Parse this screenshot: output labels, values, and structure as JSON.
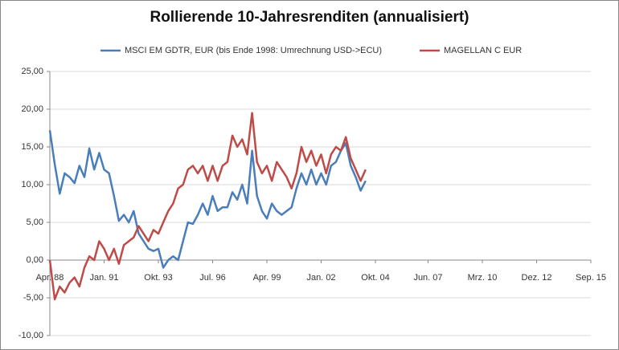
{
  "chart_data": {
    "type": "line",
    "title": "Rollierende 10-Jahresrenditen (annualisiert)",
    "x": [
      "1988-04",
      "1988-07",
      "1988-10",
      "1989-01",
      "1989-04",
      "1989-07",
      "1989-10",
      "1990-01",
      "1990-04",
      "1990-07",
      "1990-10",
      "1991-01",
      "1991-04",
      "1991-07",
      "1991-10",
      "1992-01",
      "1992-04",
      "1992-07",
      "1992-10",
      "1993-01",
      "1993-04",
      "1993-07",
      "1993-10",
      "1994-01",
      "1994-04",
      "1994-07",
      "1994-10",
      "1995-01",
      "1995-04",
      "1995-07",
      "1995-10",
      "1996-01",
      "1996-04",
      "1996-07",
      "1996-10",
      "1997-01",
      "1997-04",
      "1997-07",
      "1997-10",
      "1998-01",
      "1998-04",
      "1998-07",
      "1998-10",
      "1999-01",
      "1999-04",
      "1999-07",
      "1999-10",
      "2000-01",
      "2000-04",
      "2000-07",
      "2000-10",
      "2001-01",
      "2001-04",
      "2001-07",
      "2001-10",
      "2002-01",
      "2002-04",
      "2002-07",
      "2002-10",
      "2003-01",
      "2003-04",
      "2003-07",
      "2003-10",
      "2004-01",
      "2004-04"
    ],
    "series": [
      {
        "name": "MSCI EM GDTR,  EUR (bis Ende 1998: Umrechnung USD->ECU)",
        "color": "#4a7ebb",
        "values": [
          17.2,
          12.7,
          8.8,
          11.5,
          11.0,
          10.2,
          12.5,
          11.0,
          14.8,
          12.0,
          14.2,
          12.0,
          11.5,
          8.5,
          5.2,
          6.0,
          5.0,
          6.5,
          3.5,
          2.5,
          1.5,
          1.2,
          1.5,
          -1.0,
          0.0,
          0.5,
          0.0,
          2.5,
          5.0,
          4.8,
          6.0,
          7.5,
          6.0,
          8.5,
          6.5,
          7.0,
          7.0,
          9.0,
          8.0,
          10.0,
          7.5,
          14.5,
          8.5,
          6.5,
          5.5,
          7.5,
          6.5,
          6.0,
          6.5,
          7.0,
          9.5,
          11.5,
          10.0,
          12.0,
          10.0,
          11.5,
          10.0,
          12.5,
          13.0,
          14.5,
          15.5,
          12.5,
          11.0,
          9.2,
          10.5
        ]
      },
      {
        "name": "MAGELLAN C EUR",
        "color": "#be4b48",
        "values": [
          0.0,
          -5.2,
          -3.5,
          -4.3,
          -3.0,
          -2.3,
          -3.5,
          -1.0,
          0.5,
          0.0,
          2.5,
          1.5,
          0.0,
          1.5,
          -0.5,
          2.0,
          2.5,
          3.0,
          4.5,
          3.5,
          2.5,
          4.0,
          3.5,
          5.0,
          6.5,
          7.5,
          9.5,
          10.0,
          12.0,
          12.5,
          11.5,
          12.5,
          10.5,
          12.5,
          10.5,
          12.5,
          13.0,
          16.5,
          15.0,
          16.0,
          14.0,
          19.5,
          13.0,
          11.5,
          12.5,
          10.5,
          13.0,
          12.0,
          11.0,
          9.5,
          11.5,
          15.0,
          13.0,
          14.5,
          12.5,
          14.0,
          11.5,
          14.0,
          15.0,
          14.5,
          16.3,
          13.5,
          12.0,
          10.5,
          12.0
        ]
      }
    ],
    "xlim": [
      "1988-04",
      "2015-09"
    ],
    "xticks": [
      {
        "value": "1988-04",
        "label": "Apr. 88"
      },
      {
        "value": "1991-01",
        "label": "Jan. 91"
      },
      {
        "value": "1993-10",
        "label": "Okt. 93"
      },
      {
        "value": "1996-07",
        "label": "Jul. 96"
      },
      {
        "value": "1999-04",
        "label": "Apr. 99"
      },
      {
        "value": "2002-01",
        "label": "Jan. 02"
      },
      {
        "value": "2004-10",
        "label": "Okt. 04"
      },
      {
        "value": "2007-06",
        "label": "Jun. 07"
      },
      {
        "value": "2010-03",
        "label": "Mrz. 10"
      },
      {
        "value": "2012-12",
        "label": "Dez. 12"
      },
      {
        "value": "2015-09",
        "label": "Sep. 15"
      }
    ],
    "ylim": [
      -10,
      25
    ],
    "yticks": [
      {
        "value": -10,
        "label": "-10,00"
      },
      {
        "value": -5,
        "label": "-5,00"
      },
      {
        "value": 0,
        "label": "0,00"
      },
      {
        "value": 5,
        "label": "5,00"
      },
      {
        "value": 10,
        "label": "10,00"
      },
      {
        "value": 15,
        "label": "15,00"
      },
      {
        "value": 20,
        "label": "20,00"
      },
      {
        "value": 25,
        "label": "25,00"
      }
    ],
    "grid": true,
    "legend": "top"
  }
}
